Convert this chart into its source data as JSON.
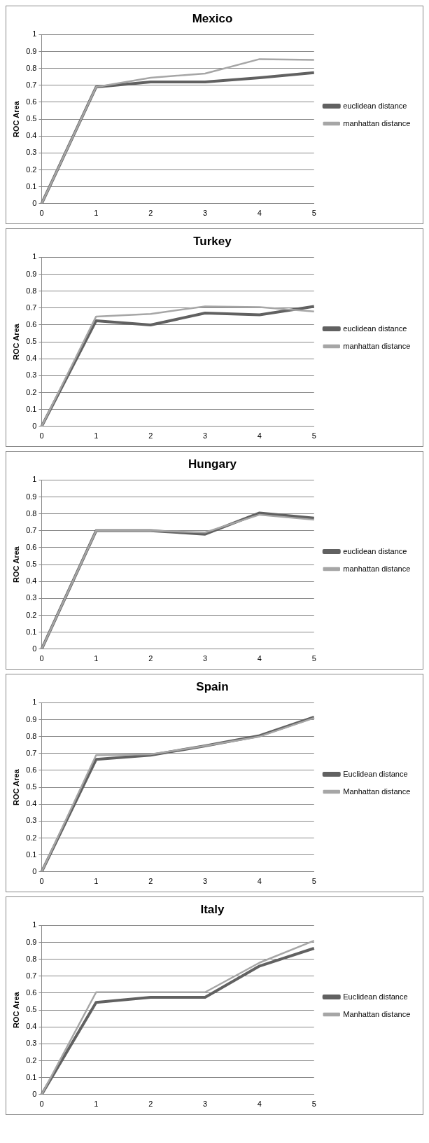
{
  "chart_data": [
    {
      "type": "line",
      "title": "Mexico",
      "ylabel": "ROC Area",
      "categories": [
        "0",
        "1",
        "2",
        "3",
        "4",
        "5"
      ],
      "ylim": [
        0,
        1
      ],
      "yticks": [
        0,
        0.1,
        0.2,
        0.3,
        0.4,
        0.5,
        0.6,
        0.7,
        0.8,
        0.9,
        1
      ],
      "grid": "y",
      "legend": "right",
      "marker": "none",
      "series": [
        {
          "name": "euclidean distance",
          "color": "#616161",
          "values": [
            0,
            0.69,
            0.72,
            0.72,
            0.745,
            0.775
          ]
        },
        {
          "name": "manhattan distance",
          "color": "#a6a6a6",
          "values": [
            0,
            0.69,
            0.745,
            0.77,
            0.855,
            0.85
          ]
        }
      ]
    },
    {
      "type": "line",
      "title": "Turkey",
      "ylabel": "ROC Area",
      "categories": [
        "0",
        "1",
        "2",
        "3",
        "4",
        "5"
      ],
      "ylim": [
        0,
        1
      ],
      "yticks": [
        0,
        0.1,
        0.2,
        0.3,
        0.4,
        0.5,
        0.6,
        0.7,
        0.8,
        0.9,
        1
      ],
      "grid": "y",
      "legend": "right",
      "marker": "none",
      "series": [
        {
          "name": "euclidean distance",
          "color": "#616161",
          "values": [
            0,
            0.625,
            0.6,
            0.67,
            0.66,
            0.71
          ]
        },
        {
          "name": "manhattan distance",
          "color": "#a6a6a6",
          "values": [
            0,
            0.65,
            0.665,
            0.71,
            0.705,
            0.68
          ]
        }
      ]
    },
    {
      "type": "line",
      "title": "Hungary",
      "ylabel": "ROC Area",
      "categories": [
        "0",
        "1",
        "2",
        "3",
        "4",
        "5"
      ],
      "ylim": [
        0,
        1
      ],
      "yticks": [
        0,
        0.1,
        0.2,
        0.3,
        0.4,
        0.5,
        0.6,
        0.7,
        0.8,
        0.9,
        1
      ],
      "grid": "y",
      "legend": "right",
      "marker": "none",
      "series": [
        {
          "name": "euclidean distance",
          "color": "#616161",
          "values": [
            0,
            0.7,
            0.7,
            0.68,
            0.805,
            0.775
          ]
        },
        {
          "name": "manhattan distance",
          "color": "#a6a6a6",
          "values": [
            0,
            0.7,
            0.7,
            0.69,
            0.795,
            0.765
          ]
        }
      ]
    },
    {
      "type": "line",
      "title": "Spain",
      "ylabel": "ROC Area",
      "categories": [
        "0",
        "1",
        "2",
        "3",
        "4",
        "5"
      ],
      "ylim": [
        0,
        1
      ],
      "yticks": [
        0,
        0.1,
        0.2,
        0.3,
        0.4,
        0.5,
        0.6,
        0.7,
        0.8,
        0.9,
        1
      ],
      "grid": "y",
      "legend": "right",
      "marker": "none",
      "series": [
        {
          "name": "Euclidean distance",
          "color": "#616161",
          "values": [
            0,
            0.665,
            0.69,
            0.745,
            0.805,
            0.915
          ]
        },
        {
          "name": "Manhattan distance",
          "color": "#a6a6a6",
          "values": [
            0,
            0.69,
            0.695,
            0.745,
            0.8,
            0.91
          ]
        }
      ]
    },
    {
      "type": "line",
      "title": "Italy",
      "ylabel": "ROC Area",
      "categories": [
        "0",
        "1",
        "2",
        "3",
        "4",
        "5"
      ],
      "ylim": [
        0,
        1
      ],
      "yticks": [
        0,
        0.1,
        0.2,
        0.3,
        0.4,
        0.5,
        0.6,
        0.7,
        0.8,
        0.9,
        1
      ],
      "grid": "y",
      "legend": "right",
      "marker": "none",
      "series": [
        {
          "name": "Euclidean distance",
          "color": "#616161",
          "values": [
            0,
            0.545,
            0.575,
            0.575,
            0.76,
            0.865
          ]
        },
        {
          "name": "Manhattan distance",
          "color": "#a6a6a6",
          "values": [
            0,
            0.605,
            0.605,
            0.605,
            0.78,
            0.91
          ]
        }
      ]
    }
  ]
}
